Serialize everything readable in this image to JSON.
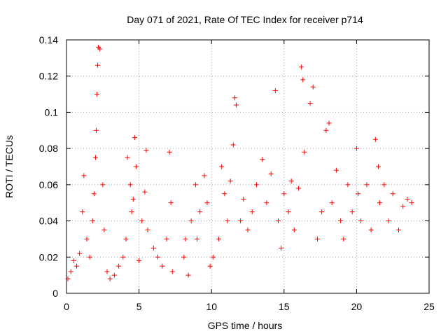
{
  "chart_data": {
    "type": "scatter",
    "title": "Day 071 of 2021, Rate Of TEC Index for receiver p714",
    "xlabel": "GPS time / hours",
    "ylabel": "ROTI / TECUs",
    "xlim": [
      0,
      25
    ],
    "ylim": [
      0,
      0.14
    ],
    "xticks": [
      0,
      5,
      10,
      15,
      20,
      25
    ],
    "xtick_labels": [
      "0",
      "5",
      "10",
      "15",
      "20",
      "25"
    ],
    "yticks": [
      0,
      0.02,
      0.04,
      0.06,
      0.08,
      0.1,
      0.12,
      0.14
    ],
    "ytick_labels": [
      "0",
      "0.02",
      "0.04",
      "0.06",
      "0.08",
      "0.1",
      "0.12",
      "0.14"
    ],
    "grid": true,
    "marker": "plus",
    "color": "#ff0000",
    "data_gap_hours": [
      7.4,
      7.9
    ],
    "series": [
      {
        "name": "ROTI",
        "x": [
          0.1,
          0.3,
          0.5,
          0.7,
          0.9,
          1.1,
          1.2,
          1.4,
          1.6,
          1.8,
          1.9,
          2.0,
          2.05,
          2.1,
          2.15,
          2.2,
          2.3,
          2.5,
          2.6,
          2.8,
          3.0,
          3.3,
          3.6,
          3.9,
          4.1,
          4.2,
          4.4,
          4.5,
          4.6,
          4.7,
          4.8,
          5.0,
          5.2,
          5.4,
          5.5,
          5.6,
          6.0,
          6.3,
          6.6,
          6.9,
          7.1,
          7.2,
          7.3,
          8.1,
          8.2,
          8.4,
          8.6,
          8.9,
          9.0,
          9.2,
          9.5,
          9.7,
          9.9,
          10.1,
          10.5,
          10.7,
          10.9,
          11.1,
          11.3,
          11.5,
          11.6,
          11.7,
          12.0,
          12.2,
          12.5,
          12.8,
          13.1,
          13.5,
          13.8,
          14.1,
          14.4,
          14.6,
          14.8,
          15.0,
          15.3,
          15.5,
          15.7,
          16.0,
          16.2,
          16.3,
          16.4,
          16.8,
          17.0,
          17.3,
          17.6,
          17.9,
          18.1,
          18.3,
          18.6,
          18.9,
          19.1,
          19.4,
          19.7,
          20.0,
          20.1,
          20.3,
          20.7,
          21.0,
          21.3,
          21.5,
          21.6,
          21.9,
          22.2,
          22.5,
          22.9,
          23.2,
          23.5,
          23.8
        ],
        "values": [
          0.008,
          0.012,
          0.018,
          0.015,
          0.022,
          0.045,
          0.065,
          0.03,
          0.02,
          0.04,
          0.055,
          0.075,
          0.09,
          0.11,
          0.126,
          0.136,
          0.135,
          0.06,
          0.035,
          0.012,
          0.008,
          0.01,
          0.015,
          0.02,
          0.03,
          0.075,
          0.06,
          0.045,
          0.052,
          0.086,
          0.07,
          0.018,
          0.04,
          0.056,
          0.079,
          0.035,
          0.025,
          0.02,
          0.015,
          0.03,
          0.078,
          0.05,
          0.012,
          0.02,
          0.03,
          0.01,
          0.04,
          0.06,
          0.03,
          0.045,
          0.065,
          0.05,
          0.015,
          0.02,
          0.03,
          0.07,
          0.055,
          0.04,
          0.062,
          0.082,
          0.108,
          0.104,
          0.04,
          0.052,
          0.035,
          0.045,
          0.06,
          0.074,
          0.05,
          0.066,
          0.112,
          0.04,
          0.025,
          0.055,
          0.045,
          0.062,
          0.035,
          0.058,
          0.125,
          0.118,
          0.078,
          0.105,
          0.114,
          0.03,
          0.045,
          0.09,
          0.094,
          0.05,
          0.068,
          0.04,
          0.03,
          0.06,
          0.045,
          0.08,
          0.055,
          0.04,
          0.06,
          0.035,
          0.085,
          0.07,
          0.05,
          0.06,
          0.04,
          0.055,
          0.035,
          0.048,
          0.052,
          0.05
        ]
      }
    ]
  }
}
